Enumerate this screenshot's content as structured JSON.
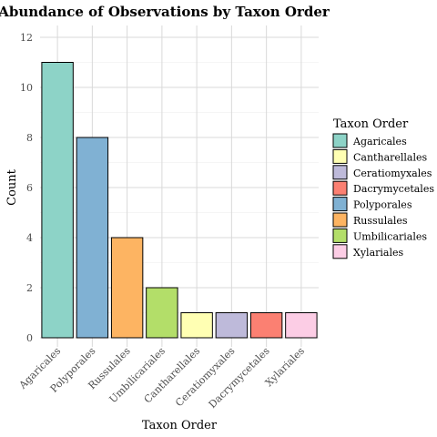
{
  "chart_data": {
    "type": "bar",
    "title": "Abundance of Observations by Taxon Order",
    "xlabel": "Taxon Order",
    "ylabel": "Count",
    "categories": [
      "Agaricales",
      "Polyporales",
      "Russulales",
      "Umbilicariales",
      "Cantharellales",
      "Ceratiomyxales",
      "Dacrymycetales",
      "Xylariales"
    ],
    "values": [
      11,
      8,
      4,
      2,
      1,
      1,
      1,
      1
    ],
    "colors": [
      "#8dd3c7",
      "#80b1d3",
      "#fdb462",
      "#b3de69",
      "#ffffb3",
      "#bebada",
      "#fb8072",
      "#fccde5"
    ],
    "ylim": [
      0,
      12.6
    ],
    "yticks": [
      0,
      2,
      4,
      6,
      8,
      10,
      12
    ],
    "grid": true,
    "legend": {
      "title": "Taxon Order",
      "position": "right",
      "items": [
        {
          "label": "Agaricales",
          "color": "#8dd3c7"
        },
        {
          "label": "Cantharellales",
          "color": "#ffffb3"
        },
        {
          "label": "Ceratiomyxales",
          "color": "#bebada"
        },
        {
          "label": "Dacrymycetales",
          "color": "#fb8072"
        },
        {
          "label": "Polyporales",
          "color": "#80b1d3"
        },
        {
          "label": "Russulales",
          "color": "#fdb462"
        },
        {
          "label": "Umbilicariales",
          "color": "#b3de69"
        },
        {
          "label": "Xylariales",
          "color": "#fccde5"
        }
      ]
    }
  }
}
